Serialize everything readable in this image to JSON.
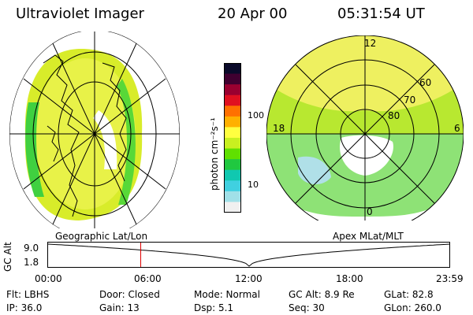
{
  "header": {
    "title": "Ultraviolet Imager",
    "date": "20 Apr 00",
    "time": "05:31:54 UT"
  },
  "colorbar": {
    "unit_label": "photon cm⁻²s⁻¹",
    "ticks": [
      "100",
      "10"
    ],
    "colors": [
      "#0a0a2a",
      "#400030",
      "#9a0030",
      "#e01020",
      "#ff7000",
      "#ffb000",
      "#ffff40",
      "#c8f020",
      "#60e000",
      "#20c840",
      "#10c8b0",
      "#40d0e0",
      "#a0e0e8",
      "#f0f0f0"
    ]
  },
  "left_panel": {
    "caption": "Geographic Lat/Lon"
  },
  "right_panel": {
    "caption": "Apex MLat/MLT",
    "mlt_labels": [
      "12",
      "18",
      "6",
      "0"
    ],
    "lat_labels": [
      "60",
      "70",
      "80"
    ]
  },
  "timeline": {
    "y_label": "GC Alt",
    "y_ticks": [
      "9.0",
      "1.8"
    ],
    "x_ticks": [
      "00:00",
      "06:00",
      "12:00",
      "18:00",
      "23:59"
    ],
    "current_time_hours": 5.53
  },
  "info": {
    "flt": "Flt: LBHS",
    "door": "Door: Closed",
    "mode": "Mode: Normal",
    "gc_alt": "GC Alt: 8.9 Re",
    "glat": "GLat:  82.8",
    "ip": "IP: 36.0",
    "gain": "Gain: 13",
    "dsp": "Dsp:    5.1",
    "seq": "Seq: 30",
    "glon": "GLon: 260.0"
  }
}
